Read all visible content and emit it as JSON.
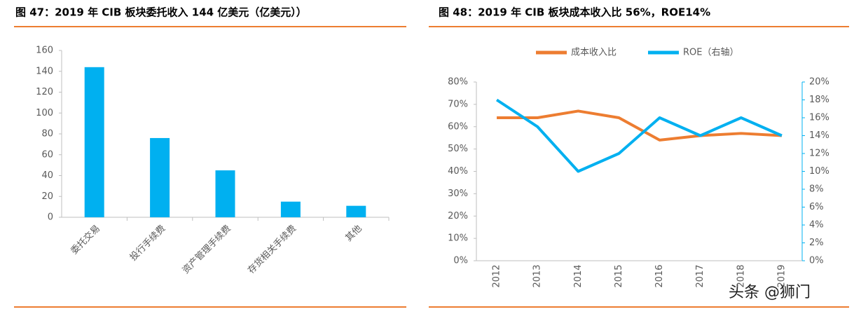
{
  "chart_data": [
    {
      "type": "bar",
      "title": "图 47：2019 年 CIB 板块委托收入 144 亿美元（亿美元））",
      "categories": [
        "委托交易",
        "投行手续费",
        "资产管理手续费",
        "存货相关手续费",
        "其他"
      ],
      "values": [
        144,
        76,
        45,
        15,
        11
      ],
      "color": "#00b0f0",
      "ylim": [
        0,
        160
      ],
      "yticks": [
        0,
        20,
        40,
        60,
        80,
        100,
        120,
        140,
        160
      ]
    },
    {
      "type": "line",
      "title": "图 48：2019 年 CIB 板块成本收入比 56%，ROE14%",
      "categories": [
        "2012",
        "2013",
        "2014",
        "2015",
        "2016",
        "2017",
        "2018",
        "2019"
      ],
      "series": [
        {
          "name": "成本收入比",
          "color": "#ed7d31",
          "values": [
            64,
            64,
            67,
            64,
            54,
            56,
            57,
            56
          ]
        },
        {
          "name": "ROE（右轴）",
          "color": "#00b0f0",
          "axis": "y2",
          "values": [
            18,
            15,
            10,
            12,
            16,
            14,
            16,
            14
          ]
        }
      ],
      "legend": "top",
      "ylim": [
        0,
        80
      ],
      "yticks": [
        {
          "value": 0,
          "label": "0%"
        },
        {
          "value": 10,
          "label": "10%"
        },
        {
          "value": 20,
          "label": "20%"
        },
        {
          "value": 30,
          "label": "30%"
        },
        {
          "value": 40,
          "label": "40%"
        },
        {
          "value": 50,
          "label": "50%"
        },
        {
          "value": 60,
          "label": "60%"
        },
        {
          "value": 70,
          "label": "70%"
        },
        {
          "value": 80,
          "label": "80%"
        }
      ],
      "y2lim": [
        0,
        20
      ],
      "y2ticks": [
        {
          "value": 0,
          "label": "0%"
        },
        {
          "value": 2,
          "label": "2%"
        },
        {
          "value": 4,
          "label": "4%"
        },
        {
          "value": 6,
          "label": "6%"
        },
        {
          "value": 8,
          "label": "8%"
        },
        {
          "value": 10,
          "label": "10%"
        },
        {
          "value": 12,
          "label": "12%"
        },
        {
          "value": 14,
          "label": "14%"
        },
        {
          "value": 16,
          "label": "16%"
        },
        {
          "value": 18,
          "label": "18%"
        },
        {
          "value": 20,
          "label": "20%"
        }
      ]
    }
  ],
  "watermark": "头条 @狮门"
}
